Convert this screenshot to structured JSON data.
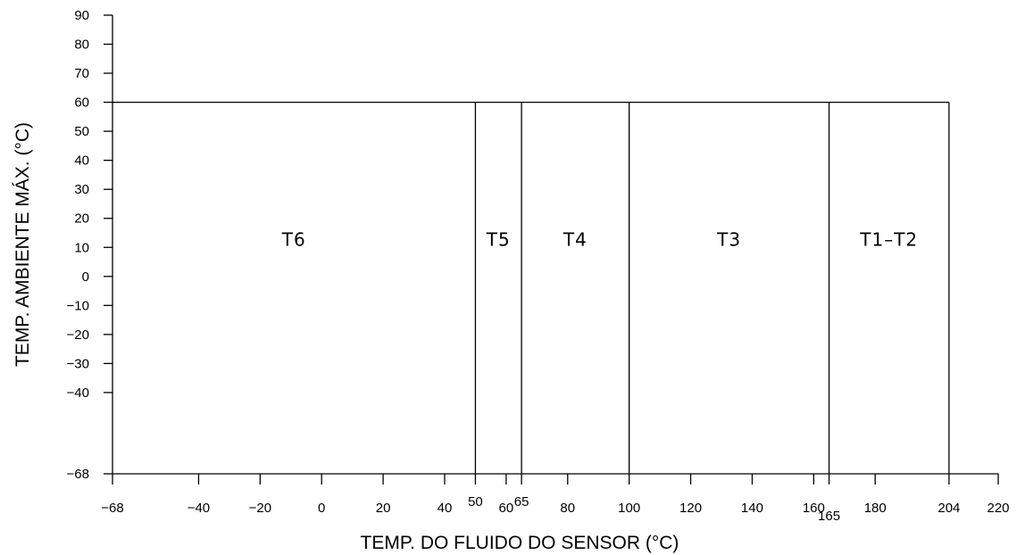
{
  "chart_data": {
    "type": "area",
    "xlabel": "TEMP. DO FLUIDO DO SENSOR (°C)",
    "ylabel": "TEMP. AMBIENTE MÁX. (°C)",
    "xlim": [
      -68,
      220
    ],
    "ylim": [
      -68,
      90
    ],
    "x_ticks": [
      {
        "value": -68,
        "label": "-68"
      },
      {
        "value": -40,
        "label": "-40"
      },
      {
        "value": -20,
        "label": "-20"
      },
      {
        "value": 0,
        "label": "0"
      },
      {
        "value": 20,
        "label": "20"
      },
      {
        "value": 40,
        "label": "40"
      },
      {
        "value": 50,
        "label": "50"
      },
      {
        "value": 60,
        "label": "60"
      },
      {
        "value": 65,
        "label": "65"
      },
      {
        "value": 80,
        "label": "80"
      },
      {
        "value": 100,
        "label": "100"
      },
      {
        "value": 120,
        "label": "120"
      },
      {
        "value": 140,
        "label": "140"
      },
      {
        "value": 160,
        "label": "160"
      },
      {
        "value": 165,
        "label": "165"
      },
      {
        "value": 180,
        "label": "180"
      },
      {
        "value": 204,
        "label": "204"
      },
      {
        "value": 220,
        "label": "220"
      }
    ],
    "y_ticks": [
      {
        "value": 90,
        "label": "90"
      },
      {
        "value": 80,
        "label": "80"
      },
      {
        "value": 70,
        "label": "70"
      },
      {
        "value": 60,
        "label": "60"
      },
      {
        "value": 50,
        "label": "50"
      },
      {
        "value": 40,
        "label": "40"
      },
      {
        "value": 30,
        "label": "30"
      },
      {
        "value": 20,
        "label": "20"
      },
      {
        "value": 10,
        "label": "10"
      },
      {
        "value": 0,
        "label": "0"
      },
      {
        "value": -10,
        "label": "-10"
      },
      {
        "value": -20,
        "label": "-20"
      },
      {
        "value": -30,
        "label": "-30"
      },
      {
        "value": -40,
        "label": "-40"
      },
      {
        "value": -68,
        "label": "-68"
      }
    ],
    "y_max": 60,
    "zones": [
      {
        "label": "T6",
        "x_start": -68,
        "x_end": 50
      },
      {
        "label": "T5",
        "x_start": 50,
        "x_end": 65
      },
      {
        "label": "T4",
        "x_start": 65,
        "x_end": 100
      },
      {
        "label": "T3",
        "x_start": 100,
        "x_end": 165
      },
      {
        "label": "T1–T2",
        "x_start": 165,
        "x_end": 204
      }
    ],
    "grid": false,
    "legend": "none"
  }
}
